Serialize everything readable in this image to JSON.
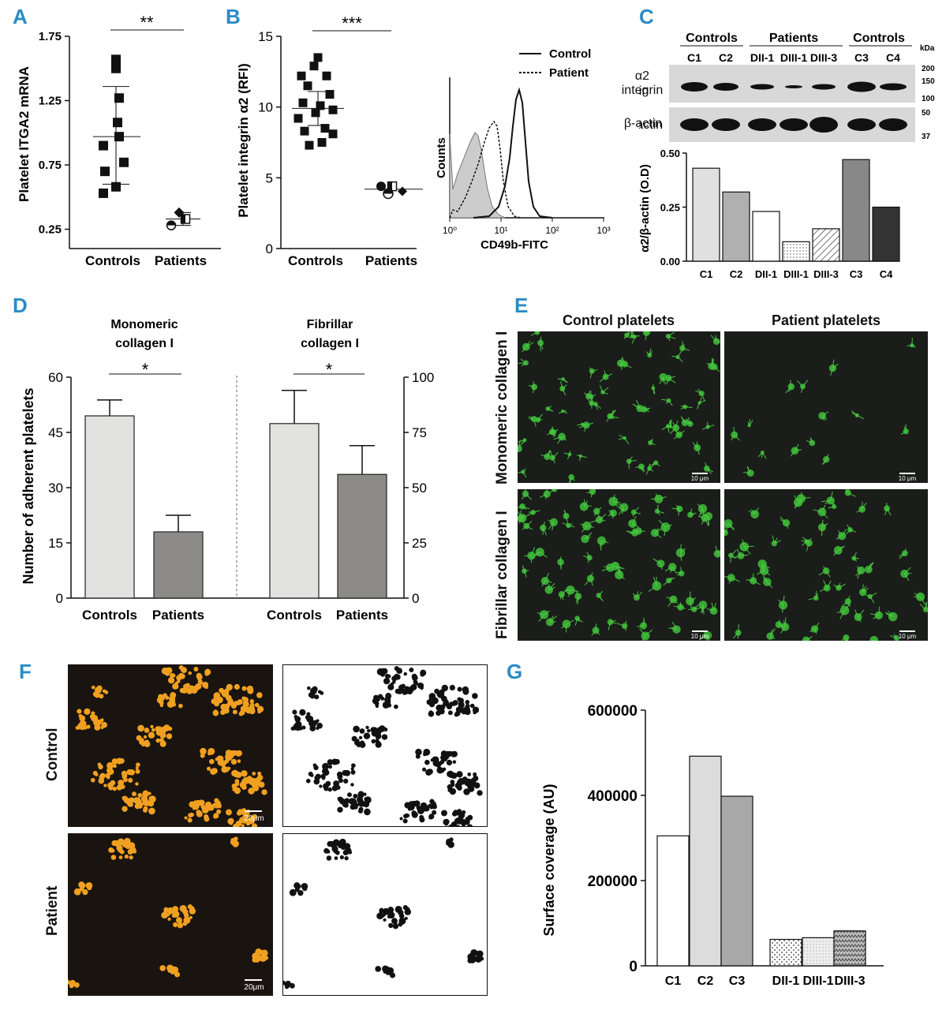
{
  "panels": {
    "A": "A",
    "B": "B",
    "C": "C",
    "D": "D",
    "E": "E",
    "F": "F",
    "G": "G"
  },
  "chart_data": [
    {
      "id": "A",
      "type": "scatter",
      "ylabel": "Platelet ITGA2 mRNA",
      "categories": [
        "Controls",
        "Patients"
      ],
      "yticks": [
        "0.25",
        "0.75",
        "1.25",
        "1.75"
      ],
      "ylim": [
        0.1,
        1.75
      ],
      "significance": "**",
      "series": [
        {
          "category": "Controls",
          "values": [
            1.57,
            1.5,
            1.27,
            1.08,
            0.97,
            0.9,
            0.77,
            0.7,
            0.58,
            0.53
          ],
          "mean": 0.97,
          "sd_low": 0.6,
          "sd_high": 1.36
        },
        {
          "category": "Patients",
          "values": [
            0.38,
            0.33,
            0.28,
            0.32
          ],
          "mean": 0.33,
          "sd_low": 0.28,
          "sd_high": 0.38
        }
      ]
    },
    {
      "id": "B",
      "type": "scatter",
      "ylabel": "Platelet integrin α2 (RFI)",
      "categories": [
        "Controls",
        "Patients"
      ],
      "yticks": [
        "0",
        "5",
        "10",
        "15"
      ],
      "ylim": [
        0,
        15
      ],
      "significance": "***",
      "series": [
        {
          "category": "Controls",
          "values": [
            13.5,
            12.9,
            12.2,
            12.2,
            11.5,
            10.9,
            10.3,
            10.1,
            9.8,
            9.6,
            9.2,
            8.5,
            8.3,
            8.1,
            7.5,
            7.3
          ],
          "mean": 9.9,
          "sd_low": 8.7,
          "sd_high": 11.1
        },
        {
          "category": "Patients",
          "values": [
            4.4,
            4.4,
            4.1,
            4.1
          ],
          "mean": 4.2
        }
      ]
    },
    {
      "id": "B-histogram",
      "type": "line",
      "xlabel": "CD49b-FITC",
      "ylabel": "Counts",
      "xticks": [
        "10⁰",
        "10¹",
        "10²",
        "10³"
      ],
      "xscale": "log",
      "legend": [
        "Control",
        "Patient"
      ]
    },
    {
      "id": "C",
      "type": "bar",
      "ylabel": "α2/β-actin (O.D)",
      "categories": [
        "C1",
        "C2",
        "DII-1",
        "DIII-1",
        "DIII-3",
        "C3",
        "C4"
      ],
      "values": [
        0.43,
        0.32,
        0.23,
        0.09,
        0.15,
        0.47,
        0.25
      ],
      "yticks": [
        "0.00",
        "0.25",
        "0.50"
      ],
      "ylim": [
        0,
        0.5
      ],
      "blot": {
        "groups": [
          "Controls",
          "Patients",
          "Controls"
        ],
        "lanes": [
          "C1",
          "C2",
          "DII-1",
          "DIII-1",
          "DIII-3",
          "C3",
          "C4"
        ],
        "rows": [
          "α2 integrin",
          "β-actin"
        ],
        "kda_label": "kDa",
        "markers": [
          "200",
          "150",
          "100",
          "50",
          "37"
        ]
      }
    },
    {
      "id": "D",
      "type": "bar",
      "ylabel": "Number of adherent platelets",
      "groups": [
        {
          "title": "Monomeric collagen I",
          "categories": [
            "Controls",
            "Patients"
          ],
          "values": [
            49.5,
            18
          ],
          "errors": [
            4.3,
            4.5
          ],
          "yticks": [
            "0",
            "15",
            "30",
            "45",
            "60"
          ],
          "ylim": [
            0,
            60
          ],
          "significance": "*"
        },
        {
          "title": "Fibrillar collagen I",
          "categories": [
            "Controls",
            "Patients"
          ],
          "values": [
            79,
            56
          ],
          "errors": [
            15,
            13
          ],
          "yticks": [
            "0",
            "25",
            "50",
            "75",
            "100"
          ],
          "ylim": [
            0,
            100
          ],
          "significance": "*"
        }
      ]
    },
    {
      "id": "G",
      "type": "bar",
      "ylabel": "Surface coverage (AU)",
      "categories": [
        "C1",
        "C2",
        "C3",
        "DII-1",
        "DIII-1",
        "DIII-3"
      ],
      "values": [
        305000,
        492000,
        398000,
        62000,
        66000,
        82000
      ],
      "yticks": [
        "0",
        "200000",
        "400000",
        "600000"
      ],
      "ylim": [
        0,
        600000
      ]
    }
  ],
  "panel_B_hist_legend": {
    "control": "Control",
    "patient": "Patient"
  },
  "panel_C_blot": {
    "group1": "Controls",
    "group2": "Patients",
    "group3": "Controls",
    "row1a": "α2",
    "row1b": "integrin",
    "row2": "β-actin",
    "kda": "kDa"
  },
  "panel_D_titles": {
    "left_l1": "Monomeric",
    "left_l2": "collagen I",
    "right_l1": "Fibrillar",
    "right_l2": "collagen I"
  },
  "panel_E": {
    "col1": "Control platelets",
    "col2": "Patient platelets",
    "row1": "Monomeric collagen I",
    "row2": "Fibrillar collagen I",
    "scale": "10 μm"
  },
  "panel_F": {
    "row1": "Control",
    "row2": "Patient",
    "scale": "20μm"
  }
}
